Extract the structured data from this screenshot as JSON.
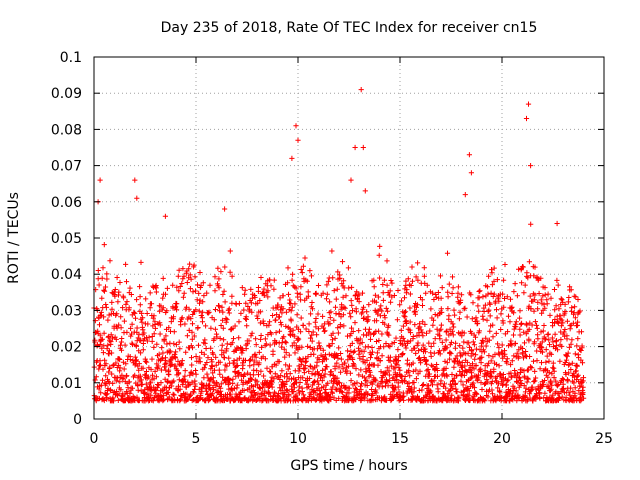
{
  "chart_data": {
    "type": "scatter",
    "title": "Day 235 of 2018, Rate Of TEC Index for receiver cn15",
    "xlabel": "GPS time / hours",
    "ylabel": "ROTI / TECUs",
    "xlim": [
      0,
      25
    ],
    "ylim": [
      0,
      0.1
    ],
    "x_ticks": [
      "0",
      "5",
      "10",
      "15",
      "20",
      "25"
    ],
    "y_ticks": [
      "0",
      "0.01",
      "0.02",
      "0.03",
      "0.04",
      "0.05",
      "0.06",
      "0.07",
      "0.08",
      "0.09",
      "0.1"
    ],
    "x_tick_values": [
      0,
      5,
      10,
      15,
      20,
      25
    ],
    "y_tick_values": [
      0,
      0.01,
      0.02,
      0.03,
      0.04,
      0.05,
      0.06,
      0.07,
      0.08,
      0.09,
      0.1
    ],
    "grid": true,
    "marker": "+",
    "series_color": "#ff0000",
    "series": [
      {
        "name": "ROTI",
        "x_range": [
          0,
          24
        ],
        "baseline_range": [
          0.005,
          0.04
        ],
        "notable_points": [
          {
            "x": 0.3,
            "y": 0.066
          },
          {
            "x": 0.2,
            "y": 0.06
          },
          {
            "x": 2.0,
            "y": 0.066
          },
          {
            "x": 2.1,
            "y": 0.061
          },
          {
            "x": 3.5,
            "y": 0.056
          },
          {
            "x": 6.4,
            "y": 0.058
          },
          {
            "x": 9.9,
            "y": 0.081
          },
          {
            "x": 10.0,
            "y": 0.077
          },
          {
            "x": 9.7,
            "y": 0.072
          },
          {
            "x": 12.6,
            "y": 0.066
          },
          {
            "x": 12.8,
            "y": 0.075
          },
          {
            "x": 13.1,
            "y": 0.091
          },
          {
            "x": 13.2,
            "y": 0.075
          },
          {
            "x": 13.3,
            "y": 0.063
          },
          {
            "x": 18.4,
            "y": 0.073
          },
          {
            "x": 18.5,
            "y": 0.068
          },
          {
            "x": 18.2,
            "y": 0.062
          },
          {
            "x": 21.3,
            "y": 0.087
          },
          {
            "x": 21.2,
            "y": 0.083
          },
          {
            "x": 21.4,
            "y": 0.07
          },
          {
            "x": 22.7,
            "y": 0.054
          }
        ]
      }
    ]
  }
}
